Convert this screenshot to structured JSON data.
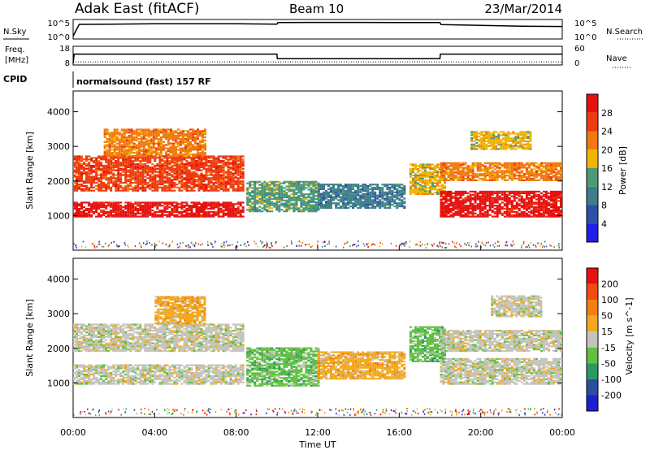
{
  "header": {
    "station": "Adak East (fitACF)",
    "beam": "Beam 10",
    "date": "23/Mar/2014"
  },
  "colors": {
    "power_scale": [
      "#1f1fe6",
      "#2c4fa8",
      "#3f7d8c",
      "#4c9a78",
      "#f0b400",
      "#f07a10",
      "#ee3b10",
      "#e61010"
    ],
    "velocity_scale": [
      "#e61010",
      "#f24a10",
      "#f27f10",
      "#f2a81c",
      "#c4c4bc",
      "#60c040",
      "#2a9a60",
      "#2a4fa0",
      "#1f1fd0"
    ]
  },
  "chart_data": [
    {
      "type": "line",
      "panel": "nsky-nsearch",
      "left_label": "N.Sky",
      "right_label": "N.Search",
      "left_ticks": [
        "10^5",
        "10^0"
      ],
      "right_ticks": [
        "10^5",
        "10^0"
      ],
      "series": [
        {
          "x_hours": [
            0,
            0.3,
            2,
            4,
            6,
            8,
            10,
            10.05,
            12,
            14,
            16,
            18,
            18.05,
            20,
            22,
            24
          ],
          "values": [
            0.15,
            0.75,
            0.76,
            0.78,
            0.78,
            0.78,
            0.76,
            0.84,
            0.85,
            0.85,
            0.84,
            0.84,
            0.74,
            0.7,
            0.66,
            0.64
          ]
        }
      ]
    },
    {
      "type": "line",
      "panel": "freq-nave",
      "left_label": "Freq.",
      "left_unit": "[MHz]",
      "right_label": "Nave",
      "left_ticks": [
        "18",
        "8"
      ],
      "right_ticks": [
        "60",
        "0"
      ],
      "series": [
        {
          "x_hours": [
            0,
            0.05,
            10,
            10.02,
            18,
            18.02,
            24
          ],
          "values": [
            8,
            14,
            14,
            11,
            11,
            14,
            14
          ]
        },
        {
          "x_hours": [
            0,
            24
          ],
          "values": [
            9,
            9
          ],
          "style": "dotted"
        }
      ]
    },
    {
      "type": "heatmap",
      "panel": "power",
      "cpid_label": "CPID",
      "cpid_text": "normalsound (fast) 157 RF",
      "ylabel": "Slant Range [km]",
      "y_ticks": [
        1000,
        2000,
        3000,
        4000
      ],
      "ylim": [
        0,
        4600
      ],
      "colorbar_label": "Power [dB]",
      "colorbar_ticks": [
        "4",
        "8",
        "12",
        "16",
        "20",
        "24",
        "28"
      ],
      "regions": [
        {
          "x": [
            0.0,
            8.3
          ],
          "y": [
            1700,
            2700
          ],
          "level": 6
        },
        {
          "x": [
            0.0,
            8.3
          ],
          "y": [
            950,
            1400
          ],
          "level": 7
        },
        {
          "x": [
            1.5,
            6.5
          ],
          "y": [
            2700,
            3500
          ],
          "level": 5
        },
        {
          "x": [
            8.5,
            12.0
          ],
          "y": [
            1100,
            2000
          ],
          "level": 3
        },
        {
          "x": [
            12.0,
            16.3
          ],
          "y": [
            1200,
            1900
          ],
          "level": 2
        },
        {
          "x": [
            16.5,
            18.2
          ],
          "y": [
            1600,
            2500
          ],
          "level": 4
        },
        {
          "x": [
            18.0,
            24.0
          ],
          "y": [
            2000,
            2500
          ],
          "level": 5
        },
        {
          "x": [
            18.0,
            24.0
          ],
          "y": [
            950,
            1700
          ],
          "level": 7
        },
        {
          "x": [
            19.5,
            22.5
          ],
          "y": [
            2900,
            3400
          ],
          "level": 4
        }
      ]
    },
    {
      "type": "heatmap",
      "panel": "velocity",
      "ylabel": "Slant Range [km]",
      "y_ticks": [
        1000,
        2000,
        3000,
        4000
      ],
      "ylim": [
        0,
        4600
      ],
      "colorbar_label": "Velocity [m s^-1]",
      "colorbar_ticks": [
        "200",
        "100",
        "50",
        "15",
        "-15",
        "-50",
        "-100",
        "-200"
      ],
      "x_tick_labels": [
        "00:00",
        "04:00",
        "08:00",
        "12:00",
        "16:00",
        "20:00",
        "00:00"
      ],
      "xlabel": "Time UT",
      "regions": [
        {
          "x": [
            0.0,
            8.3
          ],
          "y": [
            1900,
            2700
          ],
          "level": 4
        },
        {
          "x": [
            0.0,
            8.3
          ],
          "y": [
            950,
            1500
          ],
          "level": 4
        },
        {
          "x": [
            4.0,
            6.5
          ],
          "y": [
            2700,
            3500
          ],
          "level": 3
        },
        {
          "x": [
            8.5,
            12.0
          ],
          "y": [
            900,
            2000
          ],
          "level": 5
        },
        {
          "x": [
            12.0,
            16.3
          ],
          "y": [
            1100,
            1900
          ],
          "level": 3
        },
        {
          "x": [
            16.5,
            18.2
          ],
          "y": [
            1600,
            2600
          ],
          "level": 5
        },
        {
          "x": [
            18.0,
            24.0
          ],
          "y": [
            1900,
            2500
          ],
          "level": 4
        },
        {
          "x": [
            18.0,
            24.0
          ],
          "y": [
            950,
            1700
          ],
          "level": 4
        },
        {
          "x": [
            20.5,
            23.0
          ],
          "y": [
            2900,
            3500
          ],
          "level": 4
        }
      ]
    }
  ]
}
